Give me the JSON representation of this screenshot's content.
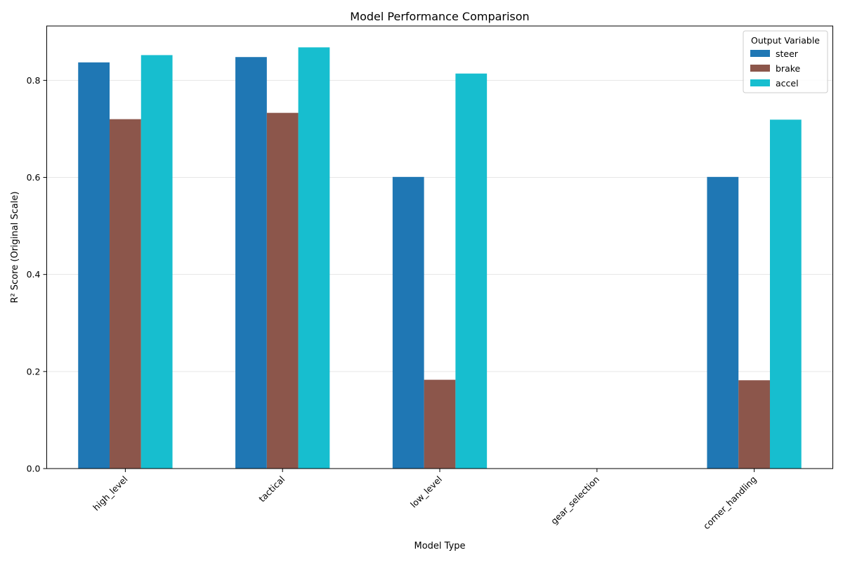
{
  "chart_data": {
    "type": "bar",
    "title": "Model Performance Comparison",
    "xlabel": "Model Type",
    "ylabel": "R² Score (Original Scale)",
    "categories": [
      "high_level",
      "tactical",
      "low_level",
      "gear_selection",
      "corner_handling"
    ],
    "series": [
      {
        "name": "steer",
        "color": "#1f77b4",
        "values": [
          0.837,
          0.848,
          0.601,
          0.0,
          0.601
        ]
      },
      {
        "name": "brake",
        "color": "#8c564b",
        "values": [
          0.72,
          0.733,
          0.183,
          0.0,
          0.182
        ]
      },
      {
        "name": "accel",
        "color": "#17becf",
        "values": [
          0.852,
          0.868,
          0.814,
          0.0,
          0.719
        ]
      }
    ],
    "ylim": [
      0,
      0.912
    ],
    "yticks": [
      0.0,
      0.2,
      0.4,
      0.6,
      0.8
    ],
    "ytick_labels": [
      "0.0",
      "0.2",
      "0.4",
      "0.6",
      "0.8"
    ],
    "grid": "y",
    "legend": {
      "title": "Output Variable",
      "placement": "top-right"
    }
  }
}
